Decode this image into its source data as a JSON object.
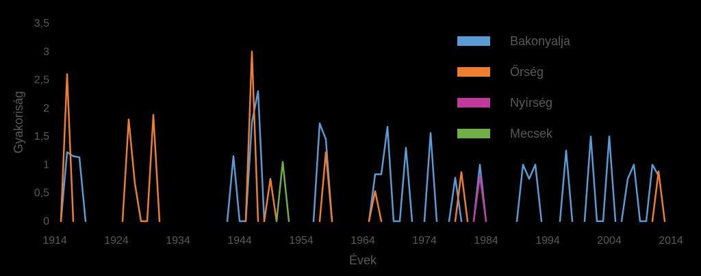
{
  "chart_data": {
    "type": "line",
    "title": "",
    "xlabel": "Évek",
    "ylabel": "Gyakoriság",
    "xlim": [
      1914,
      2014
    ],
    "ylim": [
      0,
      3.5
    ],
    "x_ticks": [
      "1914",
      "1924",
      "1934",
      "1944",
      "1954",
      "1964",
      "1974",
      "1984",
      "1994",
      "2004",
      "2014"
    ],
    "y_ticks": [
      "0",
      "0,5",
      "1",
      "1,5",
      "2",
      "2,5",
      "3",
      "3,5"
    ],
    "grid": false,
    "legend_position": "top-right",
    "background": "#000000",
    "series": [
      {
        "name": "Bakonyalja",
        "color": "#5B9BD5",
        "segments": [
          [
            [
              1915,
              0
            ],
            [
              1916,
              1.22
            ],
            [
              1917,
              1.15
            ],
            [
              1918,
              1.13
            ],
            [
              1919,
              0
            ]
          ],
          [
            [
              1942,
              0
            ],
            [
              1943,
              1.15
            ],
            [
              1944,
              0
            ],
            [
              1945,
              0
            ],
            [
              1946,
              1.75
            ],
            [
              1947,
              2.3
            ],
            [
              1948,
              0
            ]
          ],
          [
            [
              1956,
              0
            ],
            [
              1957,
              1.73
            ],
            [
              1958,
              1.45
            ],
            [
              1959,
              0
            ]
          ],
          [
            [
              1965,
              0
            ],
            [
              1966,
              0.83
            ],
            [
              1967,
              0.83
            ],
            [
              1968,
              1.67
            ],
            [
              1969,
              0
            ],
            [
              1970,
              0
            ],
            [
              1971,
              1.3
            ],
            [
              1972,
              0
            ]
          ],
          [
            [
              1974,
              0
            ],
            [
              1975,
              1.56
            ],
            [
              1976,
              0
            ]
          ],
          [
            [
              1978,
              0
            ],
            [
              1979,
              0.77
            ],
            [
              1980,
              0
            ]
          ],
          [
            [
              1982,
              0
            ],
            [
              1983,
              1.0
            ],
            [
              1984,
              0
            ]
          ],
          [
            [
              1989,
              0
            ],
            [
              1990,
              1.0
            ],
            [
              1991,
              0.75
            ],
            [
              1992,
              1.0
            ],
            [
              1993,
              0
            ]
          ],
          [
            [
              1996,
              0
            ],
            [
              1997,
              1.25
            ],
            [
              1998,
              0
            ]
          ],
          [
            [
              2000,
              0
            ],
            [
              2001,
              1.5
            ],
            [
              2002,
              0
            ],
            [
              2003,
              0
            ],
            [
              2004,
              1.5
            ],
            [
              2005,
              0
            ]
          ],
          [
            [
              2006,
              0
            ],
            [
              2007,
              0.75
            ],
            [
              2008,
              1.0
            ],
            [
              2009,
              0
            ],
            [
              2010,
              0
            ],
            [
              2011,
              1.0
            ],
            [
              2012,
              0.8
            ]
          ]
        ]
      },
      {
        "name": "Őrség",
        "color": "#ED7D31",
        "segments": [
          [
            [
              1915,
              0
            ],
            [
              1916,
              2.6
            ],
            [
              1917,
              0
            ]
          ],
          [
            [
              1925,
              0
            ],
            [
              1926,
              1.8
            ],
            [
              1927,
              0.67
            ],
            [
              1928,
              0
            ],
            [
              1929,
              0
            ],
            [
              1930,
              1.88
            ],
            [
              1931,
              0
            ]
          ],
          [
            [
              1945,
              0
            ],
            [
              1946,
              3.0
            ],
            [
              1947,
              0
            ]
          ],
          [
            [
              1948,
              0
            ],
            [
              1949,
              0.75
            ],
            [
              1950,
              0
            ]
          ],
          [
            [
              1957,
              0
            ],
            [
              1958,
              1.22
            ],
            [
              1959,
              0
            ]
          ],
          [
            [
              1965,
              0
            ],
            [
              1966,
              0.53
            ],
            [
              1967,
              0
            ]
          ],
          [
            [
              1979,
              0
            ],
            [
              1980,
              0.87
            ],
            [
              1981,
              0
            ]
          ],
          [
            [
              2011,
              0
            ],
            [
              2012,
              0.88
            ],
            [
              2013,
              0
            ]
          ]
        ]
      },
      {
        "name": "Nyírség",
        "color": "#C0399B",
        "segments": [
          [
            [
              1982,
              0
            ],
            [
              1983,
              0.8
            ],
            [
              1984,
              0
            ]
          ]
        ]
      },
      {
        "name": "Mecsek",
        "color": "#70AD47",
        "segments": [
          [
            [
              1950,
              0
            ],
            [
              1951,
              1.05
            ],
            [
              1952,
              0
            ]
          ]
        ]
      }
    ]
  }
}
